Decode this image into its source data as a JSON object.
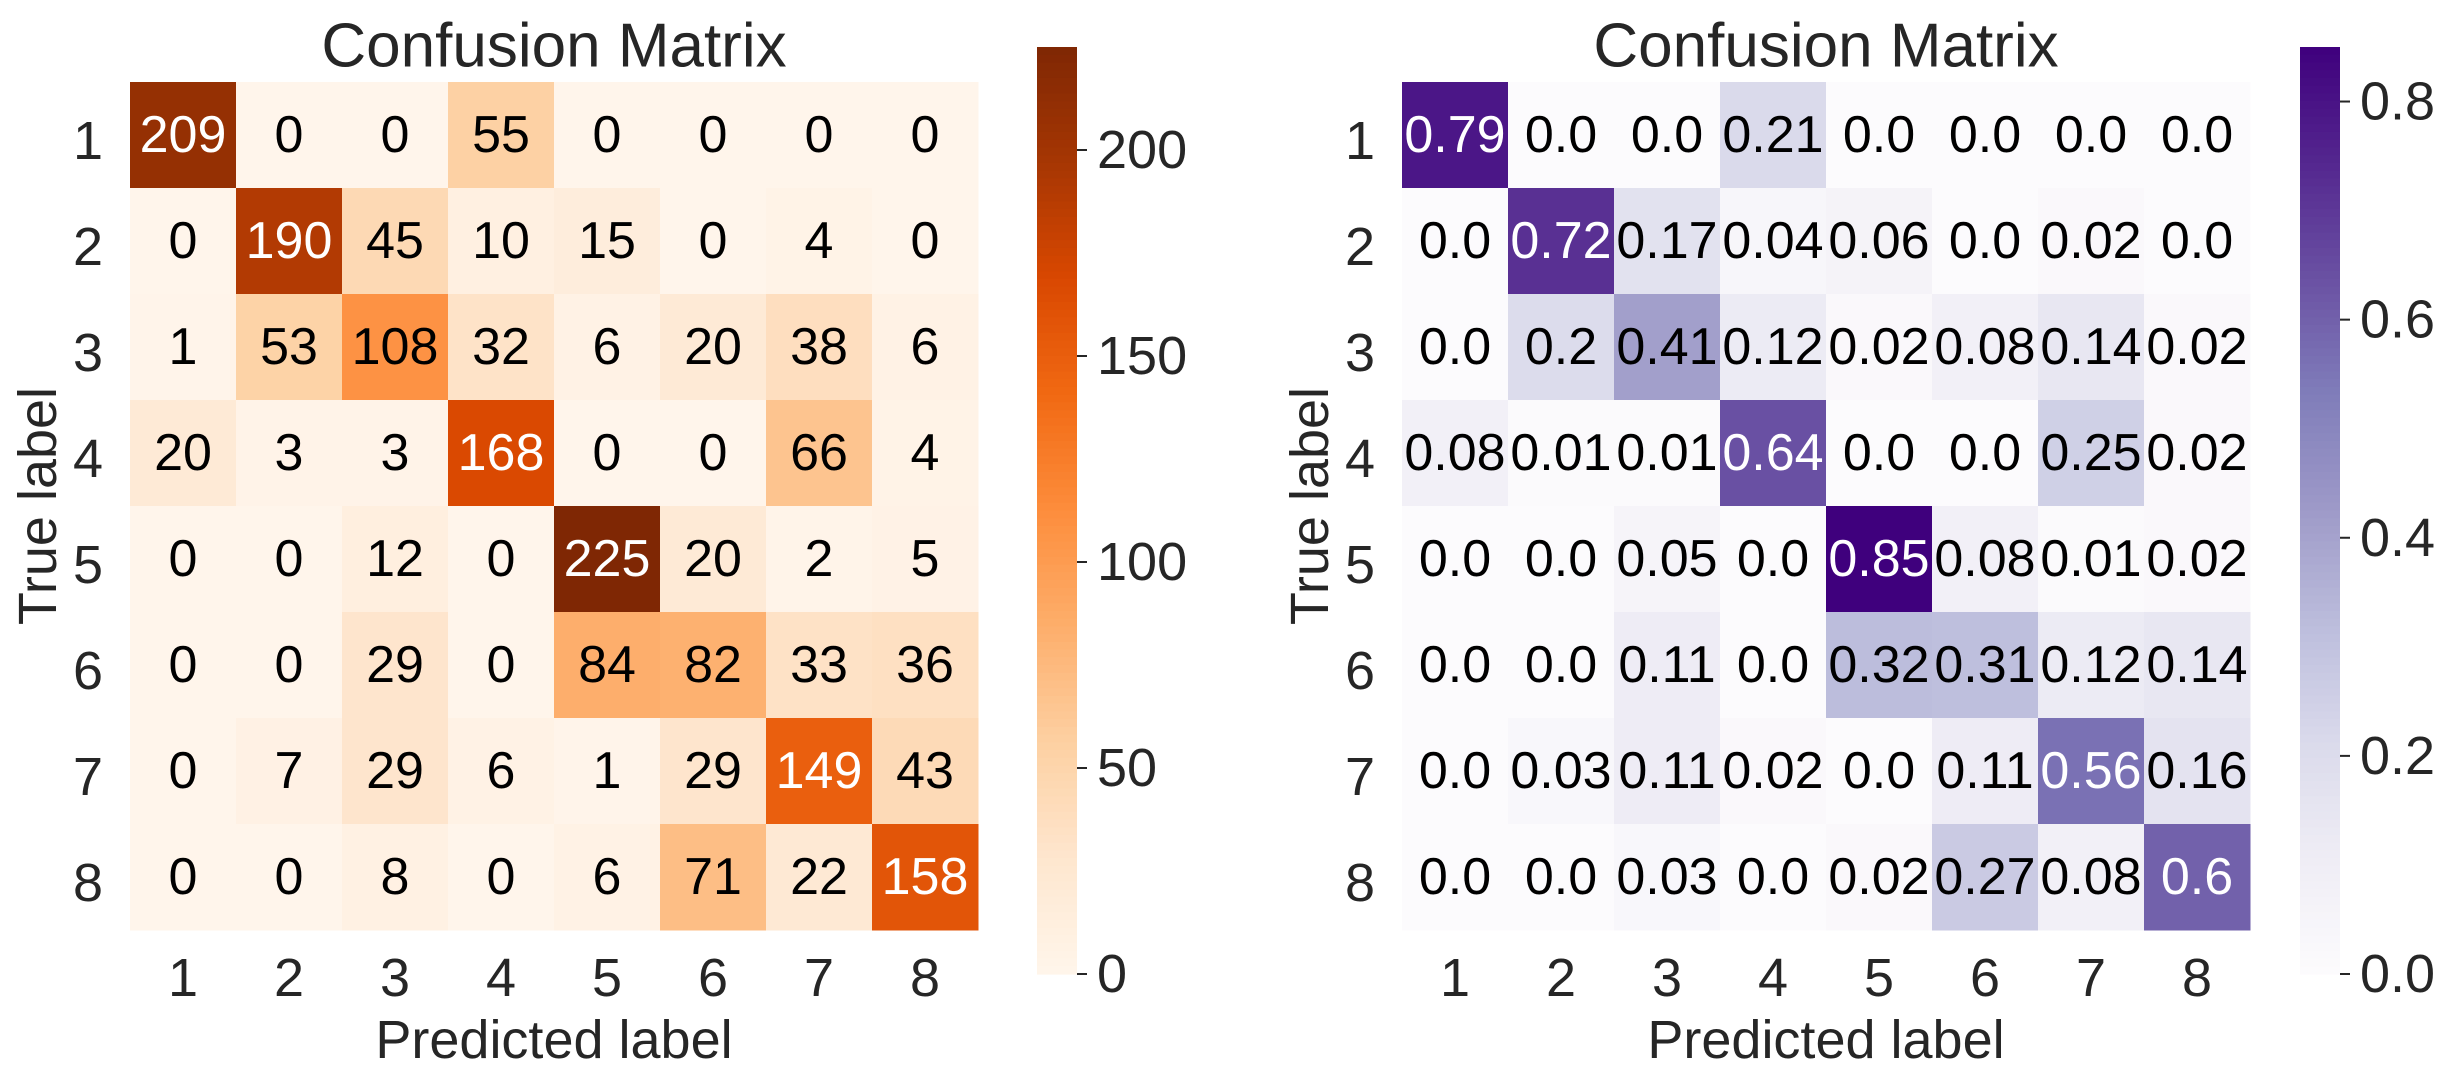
{
  "chart_data": [
    {
      "type": "heatmap",
      "title": "Confusion Matrix",
      "xlabel": "Predicted label",
      "ylabel": "True label",
      "x_categories": [
        "1",
        "2",
        "3",
        "4",
        "5",
        "6",
        "7",
        "8"
      ],
      "y_categories": [
        "1",
        "2",
        "3",
        "4",
        "5",
        "6",
        "7",
        "8"
      ],
      "values": [
        [
          209,
          0,
          0,
          55,
          0,
          0,
          0,
          0
        ],
        [
          0,
          190,
          45,
          10,
          15,
          0,
          4,
          0
        ],
        [
          1,
          53,
          108,
          32,
          6,
          20,
          38,
          6
        ],
        [
          20,
          3,
          3,
          168,
          0,
          0,
          66,
          4
        ],
        [
          0,
          0,
          12,
          0,
          225,
          20,
          2,
          5
        ],
        [
          0,
          0,
          29,
          0,
          84,
          82,
          33,
          36
        ],
        [
          0,
          7,
          29,
          6,
          1,
          29,
          149,
          43
        ],
        [
          0,
          0,
          8,
          0,
          6,
          71,
          22,
          158
        ]
      ],
      "cell_labels": [
        [
          "209",
          "0",
          "0",
          "55",
          "0",
          "0",
          "0",
          "0"
        ],
        [
          "0",
          "190",
          "45",
          "10",
          "15",
          "0",
          "4",
          "0"
        ],
        [
          "1",
          "53",
          "108",
          "32",
          "6",
          "20",
          "38",
          "6"
        ],
        [
          "20",
          "3",
          "3",
          "168",
          "0",
          "0",
          "66",
          "4"
        ],
        [
          "0",
          "0",
          "12",
          "0",
          "225",
          "20",
          "2",
          "5"
        ],
        [
          "0",
          "0",
          "29",
          "0",
          "84",
          "82",
          "33",
          "36"
        ],
        [
          "0",
          "7",
          "29",
          "6",
          "1",
          "29",
          "149",
          "43"
        ],
        [
          "0",
          "0",
          "8",
          "0",
          "6",
          "71",
          "22",
          "158"
        ]
      ],
      "colormap": "Oranges",
      "colormap_stops": [
        "#fff5eb",
        "#fee6ce",
        "#fdd0a2",
        "#fdae6b",
        "#fd8d3c",
        "#f16913",
        "#d94801",
        "#a63603",
        "#7f2704"
      ],
      "value_range": [
        0,
        225
      ],
      "colorbar_ticks": [
        0,
        50,
        100,
        150,
        200
      ],
      "colorbar_tick_labels": [
        "0",
        "50",
        "100",
        "150",
        "200"
      ]
    },
    {
      "type": "heatmap",
      "title": "Confusion Matrix",
      "xlabel": "Predicted label",
      "ylabel": "True label",
      "x_categories": [
        "1",
        "2",
        "3",
        "4",
        "5",
        "6",
        "7",
        "8"
      ],
      "y_categories": [
        "1",
        "2",
        "3",
        "4",
        "5",
        "6",
        "7",
        "8"
      ],
      "values": [
        [
          0.79,
          0.0,
          0.0,
          0.21,
          0.0,
          0.0,
          0.0,
          0.0
        ],
        [
          0.0,
          0.72,
          0.17,
          0.04,
          0.06,
          0.0,
          0.02,
          0.0
        ],
        [
          0.0,
          0.2,
          0.41,
          0.12,
          0.02,
          0.08,
          0.14,
          0.02
        ],
        [
          0.08,
          0.01,
          0.01,
          0.64,
          0.0,
          0.0,
          0.25,
          0.02
        ],
        [
          0.0,
          0.0,
          0.05,
          0.0,
          0.85,
          0.08,
          0.01,
          0.02
        ],
        [
          0.0,
          0.0,
          0.11,
          0.0,
          0.32,
          0.31,
          0.12,
          0.14
        ],
        [
          0.0,
          0.03,
          0.11,
          0.02,
          0.0,
          0.11,
          0.56,
          0.16
        ],
        [
          0.0,
          0.0,
          0.03,
          0.0,
          0.02,
          0.27,
          0.08,
          0.6
        ]
      ],
      "cell_labels": [
        [
          "0.79",
          "0.0",
          "0.0",
          "0.21",
          "0.0",
          "0.0",
          "0.0",
          "0.0"
        ],
        [
          "0.0",
          "0.72",
          "0.17",
          "0.04",
          "0.06",
          "0.0",
          "0.02",
          "0.0"
        ],
        [
          "0.0",
          "0.2",
          "0.41",
          "0.12",
          "0.02",
          "0.08",
          "0.14",
          "0.02"
        ],
        [
          "0.08",
          "0.01",
          "0.01",
          "0.64",
          "0.0",
          "0.0",
          "0.25",
          "0.02"
        ],
        [
          "0.0",
          "0.0",
          "0.05",
          "0.0",
          "0.85",
          "0.08",
          "0.01",
          "0.02"
        ],
        [
          "0.0",
          "0.0",
          "0.11",
          "0.0",
          "0.32",
          "0.31",
          "0.12",
          "0.14"
        ],
        [
          "0.0",
          "0.03",
          "0.11",
          "0.02",
          "0.0",
          "0.11",
          "0.56",
          "0.16"
        ],
        [
          "0.0",
          "0.0",
          "0.03",
          "0.0",
          "0.02",
          "0.27",
          "0.08",
          "0.6"
        ]
      ],
      "colormap": "Purples",
      "colormap_stops": [
        "#fcfbfd",
        "#efedf5",
        "#dadaeb",
        "#bcbddc",
        "#9e9ac8",
        "#807dba",
        "#6a51a3",
        "#54278f",
        "#3f007d"
      ],
      "value_range": [
        0.0,
        0.85
      ],
      "colorbar_ticks": [
        0.0,
        0.2,
        0.4,
        0.6,
        0.8
      ],
      "colorbar_tick_labels": [
        "0.0",
        "0.2",
        "0.4",
        "0.6",
        "0.8"
      ]
    }
  ]
}
